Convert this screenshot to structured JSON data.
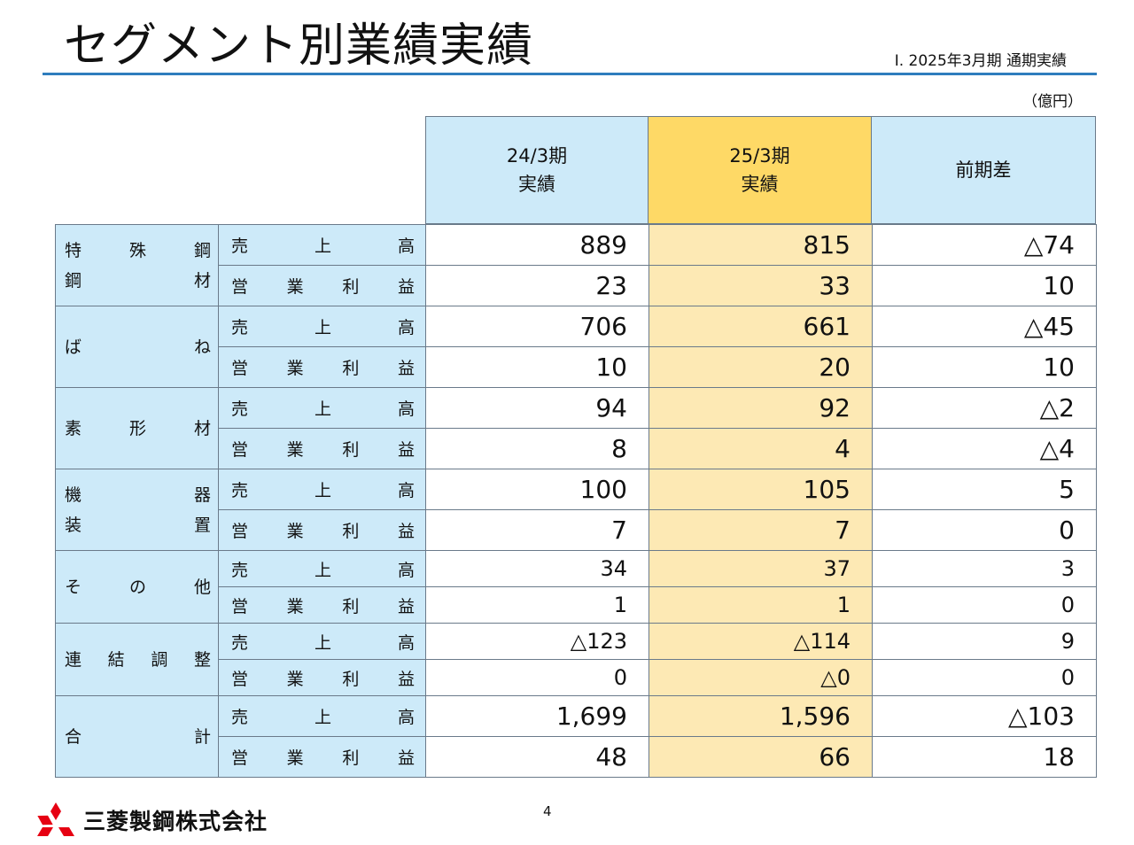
{
  "title": "セグメント別業績実績",
  "subtitle": "Ⅰ. 2025年3月期 通期実績",
  "unit": "（億円）",
  "headers": {
    "col1": [
      "24/3期",
      "実績"
    ],
    "col2": [
      "25/3期",
      "実績"
    ],
    "col3": "前期差"
  },
  "items": {
    "sales": [
      "売",
      "上",
      "高"
    ],
    "profit": [
      "営",
      "業",
      "利",
      "益"
    ]
  },
  "segments": [
    {
      "lines": [
        [
          "特",
          "殊",
          "鋼"
        ],
        [
          "鋼",
          "材"
        ]
      ],
      "sales": [
        "889",
        "815",
        "△74"
      ],
      "profit": [
        "23",
        "33",
        "10"
      ]
    },
    {
      "lines": [
        [
          "ば",
          "ね"
        ]
      ],
      "sales": [
        "706",
        "661",
        "△45"
      ],
      "profit": [
        "10",
        "20",
        "10"
      ]
    },
    {
      "lines": [
        [
          "素",
          "形",
          "材"
        ]
      ],
      "sales": [
        "94",
        "92",
        "△2"
      ],
      "profit": [
        "8",
        "4",
        "△4"
      ]
    },
    {
      "lines": [
        [
          "機",
          "器"
        ],
        [
          "装",
          "置"
        ]
      ],
      "sales": [
        "100",
        "105",
        "5"
      ],
      "profit": [
        "7",
        "7",
        "0"
      ]
    },
    {
      "lines": [
        [
          "そ",
          "の",
          "他"
        ]
      ],
      "sales": [
        "34",
        "37",
        "3"
      ],
      "profit": [
        "1",
        "1",
        "0"
      ]
    },
    {
      "lines": [
        [
          "連",
          "結",
          "調",
          "整"
        ]
      ],
      "sales": [
        "△123",
        "△114",
        "9"
      ],
      "profit": [
        "0",
        "△0",
        "0"
      ]
    },
    {
      "lines": [
        [
          "合",
          "計"
        ]
      ],
      "sales": [
        "1,699",
        "1,596",
        "△103"
      ],
      "profit": [
        "48",
        "66",
        "18"
      ]
    }
  ],
  "page_number": "4",
  "company": "三菱製鋼株式会社",
  "colors": {
    "accent_rule": "#2f7dbd",
    "header_blue": "#cdeaf9",
    "header_yellow": "#fed966",
    "column_yellow": "#fde9b4",
    "logo_red": "#e60012"
  }
}
